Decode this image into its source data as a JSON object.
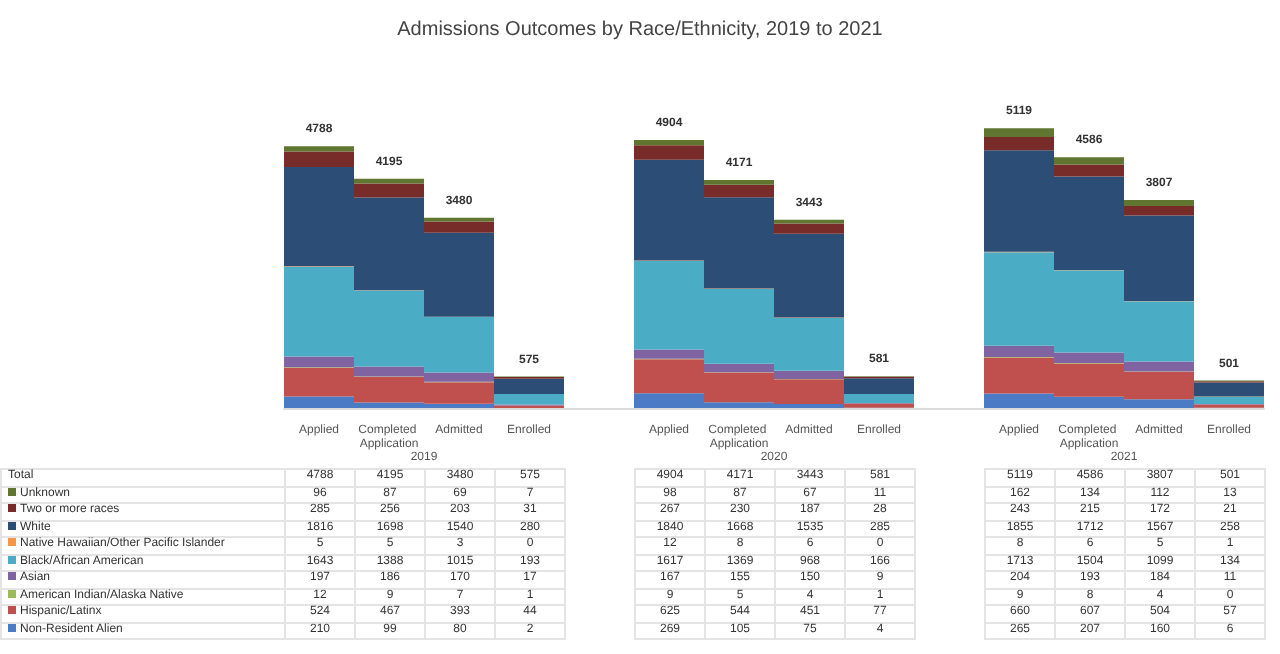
{
  "chart_data": {
    "type": "bar",
    "title": "Admissions Outcomes by Race/Ethnicity, 2019 to 2021",
    "categories": [
      "Applied",
      "Completed Application",
      "Admitted",
      "Enrolled",
      null,
      "Applied",
      "Completed Application",
      "Admitted",
      "Enrolled",
      null,
      "Applied",
      "Completed Application",
      "Admitted",
      "Enrolled"
    ],
    "stacked": true,
    "data_labels": true,
    "legend": "bottom",
    "annotations": [
      "2019",
      "2020",
      "2021",
      "Total"
    ],
    "totals": [
      "4788",
      "4195",
      "3480",
      "575",
      null,
      "4904",
      "4171",
      "3443",
      "581",
      null,
      "5119",
      "4586",
      "3807",
      "501"
    ],
    "series": [
      {
        "name": "Non-Resident Alien",
        "color": "#4a7bc4",
        "values": [
          210,
          99,
          80,
          2,
          null,
          269,
          105,
          75,
          4,
          null,
          265,
          207,
          160,
          6
        ]
      },
      {
        "name": "Hispanic/Latinx",
        "color": "#c0504d",
        "values": [
          524,
          467,
          393,
          44,
          null,
          625,
          544,
          451,
          77,
          null,
          660,
          607,
          504,
          57
        ]
      },
      {
        "name": "American Indian/Alaska Native",
        "color": "#9bbb59",
        "values": [
          12,
          9,
          7,
          1,
          null,
          9,
          5,
          4,
          1,
          null,
          9,
          8,
          4,
          0
        ]
      },
      {
        "name": "Asian",
        "color": "#8064a2",
        "values": [
          197,
          186,
          170,
          17,
          null,
          167,
          155,
          150,
          9,
          null,
          204,
          193,
          184,
          11
        ]
      },
      {
        "name": "Black/African American",
        "color": "#4bacc6",
        "values": [
          1643,
          1388,
          1015,
          193,
          null,
          1617,
          1369,
          968,
          166,
          null,
          1713,
          1504,
          1099,
          134
        ]
      },
      {
        "name": "Native Hawaiian/Other Pacific Islander",
        "color": "#f79646",
        "values": [
          5,
          5,
          3,
          0,
          null,
          12,
          8,
          6,
          0,
          null,
          8,
          6,
          5,
          1
        ]
      },
      {
        "name": "White",
        "color": "#2c4d75",
        "values": [
          1816,
          1698,
          1540,
          280,
          null,
          1840,
          1668,
          1535,
          285,
          null,
          1855,
          1712,
          1567,
          258
        ]
      },
      {
        "name": "Two or more races",
        "color": "#772c2a",
        "values": [
          285,
          256,
          203,
          31,
          null,
          267,
          230,
          187,
          28,
          null,
          243,
          215,
          172,
          21
        ]
      },
      {
        "name": "Unknown",
        "color": "#5f7530",
        "values": [
          96,
          87,
          69,
          7,
          null,
          98,
          87,
          67,
          11,
          null,
          162,
          134,
          112,
          13
        ]
      }
    ]
  }
}
